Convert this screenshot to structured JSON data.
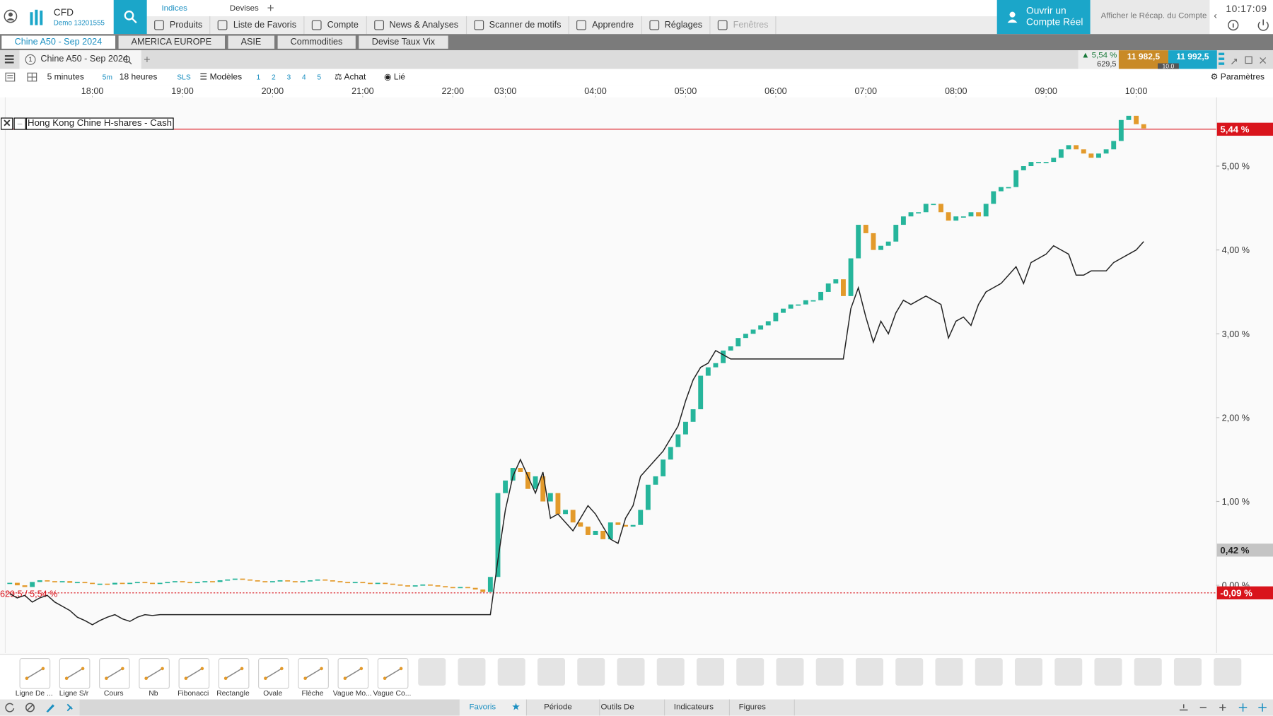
{
  "header": {
    "brand": "CFD",
    "account": "Demo 13201555",
    "tabs": [
      "Indices",
      "Devises"
    ],
    "nav": [
      "Produits",
      "Liste de Favoris",
      "Compte",
      "News & Analyses",
      "Scanner de motifs",
      "Apprendre",
      "Réglages",
      "Fenêtres"
    ],
    "open_account": "Ouvrir un Compte Réel",
    "summary": "Afficher le Récap. du Compte",
    "time": "10:17:09"
  },
  "watchlists": [
    "Chine A50 - Sep 2024",
    "AMERICA EUROPE",
    "ASIE",
    "Commodities",
    "Devise Taux Vix"
  ],
  "quote": {
    "change": "5,54 %",
    "points": "629,5",
    "sell": "11 982,5",
    "buy": "11 992,5",
    "spread": "10.0"
  },
  "toolbar": {
    "interval": "5 minutes",
    "interval_short": "5m",
    "range": "18 heures",
    "sls": "SLS",
    "templates": "Modèles",
    "slots": [
      "1",
      "2",
      "3",
      "4",
      "5"
    ],
    "buy": "Achat",
    "linked": "Lié",
    "settings": "Paramètres"
  },
  "chart_data": {
    "type": "candlestick",
    "categories": [
      null,
      null,
      null,
      null,
      null,
      null,
      null,
      null,
      null,
      null,
      null,
      "18:00",
      null,
      null,
      null,
      null,
      null,
      null,
      null,
      null,
      null,
      null,
      null,
      "19:00",
      null,
      null,
      null,
      null,
      null,
      null,
      null,
      null,
      null,
      null,
      null,
      "20:00",
      null,
      null,
      null,
      null,
      null,
      null,
      null,
      null,
      null,
      null,
      null,
      "21:00",
      null,
      null,
      null,
      null,
      null,
      null,
      null,
      null,
      null,
      null,
      null,
      "22:00",
      null,
      null,
      null,
      null,
      null,
      null,
      "03:00",
      null,
      null,
      null,
      null,
      null,
      null,
      null,
      null,
      null,
      null,
      null,
      "04:00",
      null,
      null,
      null,
      null,
      null,
      null,
      null,
      null,
      null,
      null,
      null,
      "05:00",
      null,
      null,
      null,
      null,
      null,
      null,
      null,
      null,
      null,
      null,
      null,
      "06:00",
      null,
      null,
      null,
      null,
      null,
      null,
      null,
      null,
      null,
      null,
      null,
      "07:00",
      null,
      null,
      null,
      null,
      null,
      null,
      null,
      null,
      null,
      null,
      null,
      "08:00",
      null,
      null,
      null,
      null,
      null,
      null,
      null,
      null,
      null,
      null,
      null,
      "09:00",
      null,
      null,
      null,
      null,
      null,
      null,
      null,
      null,
      null,
      null,
      null,
      "10:00",
      null
    ],
    "series": [
      {
        "name": "Chine A50 - Sep 2024",
        "up_color": "#26b59b",
        "down_color": "#e39a2b",
        "values": [
          0.03,
          0.0,
          -0.02,
          0.04,
          0.06,
          0.05,
          0.04,
          0.05,
          0.03,
          0.04,
          0.03,
          0.02,
          0.02,
          0.01,
          0.03,
          0.02,
          0.03,
          0.04,
          0.03,
          0.02,
          0.03,
          0.04,
          0.05,
          0.04,
          0.03,
          0.04,
          0.05,
          0.04,
          0.06,
          0.07,
          0.08,
          0.07,
          0.06,
          0.05,
          0.04,
          0.05,
          0.06,
          0.05,
          0.04,
          0.05,
          0.06,
          0.07,
          0.06,
          0.05,
          0.04,
          0.03,
          0.04,
          0.03,
          0.02,
          0.03,
          0.02,
          0.01,
          0.0,
          -0.01,
          0.0,
          0.01,
          0.0,
          -0.01,
          -0.02,
          -0.03,
          -0.02,
          -0.03,
          -0.05,
          -0.08,
          0.1,
          1.1,
          1.25,
          1.4,
          1.35,
          1.15,
          1.3,
          1.0,
          1.1,
          0.85,
          0.9,
          0.75,
          0.7,
          0.6,
          0.65,
          0.55,
          0.75,
          0.72,
          0.7,
          0.72,
          0.9,
          1.2,
          1.3,
          1.5,
          1.65,
          1.8,
          1.95,
          2.1,
          2.5,
          2.6,
          2.65,
          2.8,
          2.85,
          2.95,
          3.0,
          3.05,
          3.1,
          3.15,
          3.25,
          3.3,
          3.35,
          3.35,
          3.4,
          3.4,
          3.5,
          3.6,
          3.65,
          3.45,
          3.9,
          4.3,
          4.2,
          4.0,
          4.05,
          4.1,
          4.3,
          4.4,
          4.45,
          4.45,
          4.55,
          4.55,
          4.45,
          4.35,
          4.4,
          4.4,
          4.45,
          4.4,
          4.55,
          4.7,
          4.75,
          4.75,
          4.95,
          5.0,
          5.05,
          5.05,
          5.05,
          5.1,
          5.2,
          5.25,
          5.2,
          5.15,
          5.1,
          5.15,
          5.2,
          5.3,
          5.55,
          5.6,
          5.5,
          5.45
        ]
      },
      {
        "name": "Hong Kong Chine H-shares - Cash",
        "color": "#222222",
        "values": [
          -0.1,
          -0.15,
          -0.12,
          -0.2,
          -0.15,
          -0.12,
          -0.2,
          -0.25,
          -0.3,
          -0.38,
          -0.42,
          -0.47,
          -0.42,
          -0.38,
          -0.35,
          -0.4,
          -0.43,
          -0.38,
          -0.35,
          -0.36,
          -0.35,
          -0.35,
          -0.35,
          -0.35,
          -0.35,
          -0.35,
          -0.35,
          -0.35,
          -0.35,
          -0.35,
          -0.35,
          -0.35,
          -0.35,
          -0.35,
          -0.35,
          -0.35,
          -0.35,
          -0.35,
          -0.35,
          -0.35,
          -0.35,
          -0.35,
          -0.35,
          -0.35,
          -0.35,
          -0.35,
          -0.35,
          -0.35,
          -0.35,
          -0.35,
          -0.35,
          -0.35,
          -0.35,
          -0.35,
          -0.35,
          -0.35,
          -0.35,
          -0.35,
          -0.35,
          -0.35,
          -0.35,
          -0.35,
          -0.35,
          -0.35,
          -0.35,
          0.3,
          0.9,
          1.3,
          1.5,
          1.3,
          1.1,
          1.35,
          0.8,
          0.85,
          0.75,
          0.65,
          0.8,
          0.95,
          0.85,
          0.7,
          0.55,
          0.5,
          0.8,
          0.95,
          1.3,
          1.4,
          1.5,
          1.6,
          1.75,
          1.9,
          2.2,
          2.45,
          2.6,
          2.65,
          2.8,
          2.75,
          2.7,
          2.7,
          2.7,
          2.7,
          2.7,
          2.7,
          2.7,
          2.7,
          2.7,
          2.7,
          2.7,
          2.7,
          2.7,
          2.7,
          2.7,
          2.7,
          3.3,
          3.55,
          3.2,
          2.9,
          3.15,
          3.0,
          3.25,
          3.4,
          3.35,
          3.4,
          3.45,
          3.4,
          3.35,
          2.95,
          3.15,
          3.2,
          3.1,
          3.35,
          3.5,
          3.55,
          3.6,
          3.7,
          3.8,
          3.6,
          3.85,
          3.9,
          3.95,
          4.05,
          4.0,
          3.95,
          3.7,
          3.7,
          3.75,
          3.75,
          3.75,
          3.85,
          3.9,
          3.95,
          4.0,
          4.1
        ]
      }
    ],
    "ylim": [
      -0.79,
      5.82
    ],
    "yticks": [
      {
        "value": 0,
        "label": "0,00 %"
      },
      {
        "value": 1,
        "label": "1,00 %"
      },
      {
        "value": 2,
        "label": "2,00 %"
      },
      {
        "value": 3,
        "label": "3,00 %"
      },
      {
        "value": 4,
        "label": "4,00 %"
      },
      {
        "value": 5,
        "label": "5,00 %"
      }
    ],
    "markers": [
      {
        "value": 5.44,
        "label": "5,44 %",
        "color": "#d9141c",
        "line_style": "solid"
      },
      {
        "value": 0.42,
        "label": "0,42 %",
        "color": "#c4c4c4"
      },
      {
        "value": -0.09,
        "label": "-0,09 %",
        "color": "#d9141c",
        "line_style": "dotted"
      }
    ],
    "annotation": "629,5 / 5,54 %"
  },
  "drawing_tools": [
    "Ligne De ...",
    "Ligne S/r",
    "Cours",
    "Nb",
    "Fibonacci",
    "Rectangle",
    "Ovale",
    "Flèche",
    "Vague Mo...",
    "Vague Co..."
  ],
  "bottom_tabs": [
    "Favoris",
    "Période",
    "Outils De Dessin",
    "Indicateurs",
    "Figures"
  ]
}
